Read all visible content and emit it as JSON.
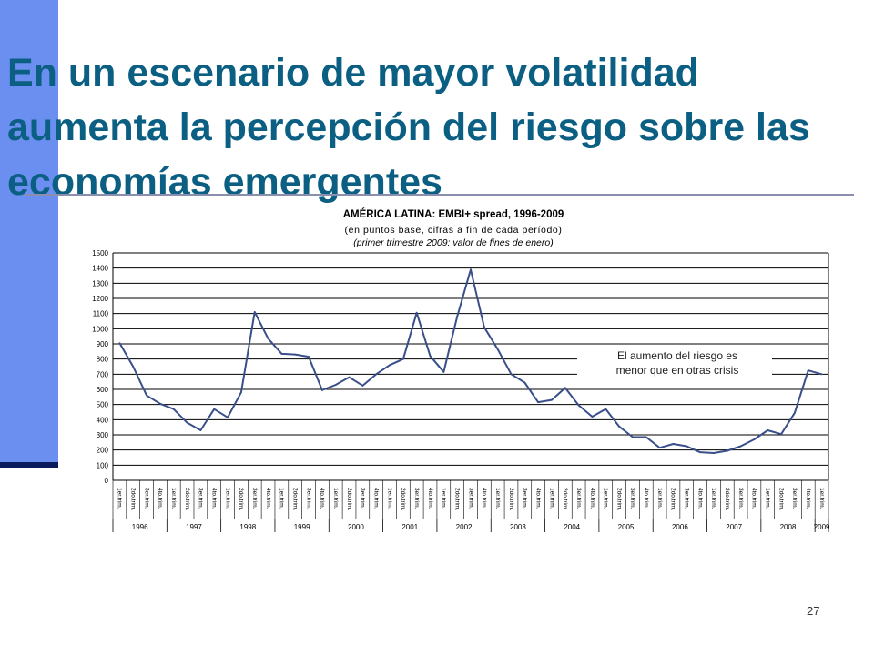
{
  "slide": {
    "title": "En un escenario de mayor volatilidad aumenta la percepción del riesgo sobre las economías emergentes",
    "page_number": "27"
  },
  "colors": {
    "accent_bar": "#6b8ff0",
    "title_text": "#0b5f83",
    "series_line": "#3a4f8a"
  },
  "chart_data": {
    "type": "line",
    "title": "AMÉRICA LATINA: EMBI+ spread, 1996-2009",
    "subtitle": "(en puntos base, cifras a fin de cada período)",
    "subtitle2": "(primer trimestre 2009: valor de  fines de enero)",
    "xlabel": "",
    "ylabel": "",
    "ylim": [
      0,
      1500
    ],
    "yticks": [
      0,
      100,
      200,
      300,
      400,
      500,
      600,
      700,
      800,
      900,
      1000,
      1100,
      1200,
      1300,
      1400,
      1500
    ],
    "grid": true,
    "quarter_labels": [
      "1er.trim.",
      "2do.trim.",
      "3er.trim.",
      "4to.trim."
    ],
    "years": [
      "1996",
      "1997",
      "1998",
      "1999",
      "2000",
      "2001",
      "2002",
      "2003",
      "2004",
      "2005",
      "2006",
      "2007",
      "2008",
      "2009"
    ],
    "annotation": "El aumento del riesgo es menor que en otras crisis",
    "values": [
      905,
      750,
      560,
      505,
      470,
      380,
      330,
      470,
      415,
      580,
      1110,
      935,
      835,
      830,
      815,
      595,
      630,
      680,
      625,
      700,
      760,
      800,
      1105,
      820,
      715,
      1080,
      1390,
      1010,
      865,
      700,
      645,
      515,
      530,
      610,
      495,
      420,
      470,
      355,
      285,
      285,
      215,
      240,
      225,
      185,
      180,
      195,
      225,
      270,
      330,
      305,
      445,
      725,
      700
    ]
  }
}
